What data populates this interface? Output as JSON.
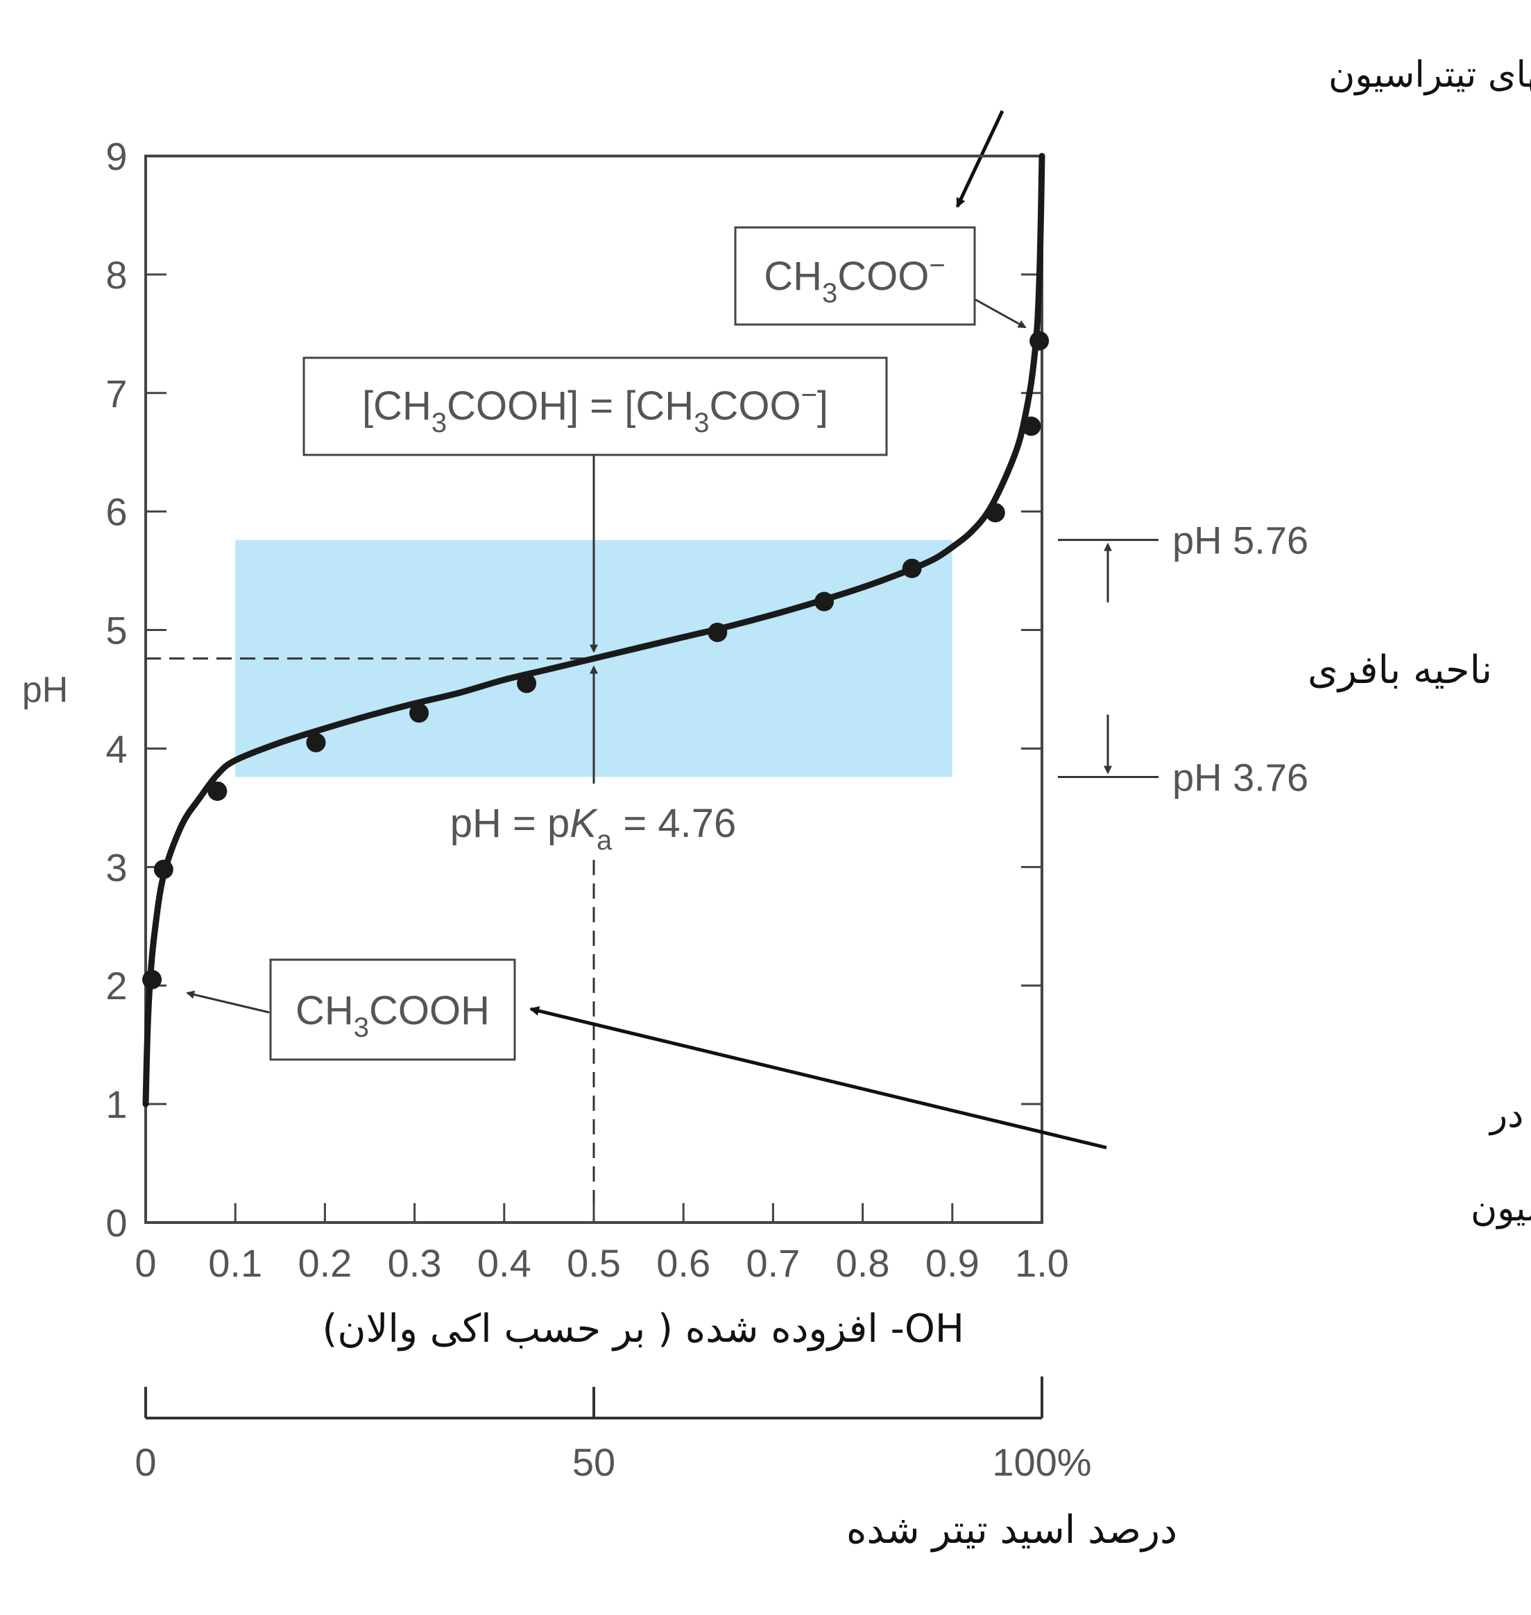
{
  "chart_data": {
    "type": "line",
    "ylabel": "pH",
    "xlabel": "OH- افزوده شده ( بر حسب اکی والان)",
    "xlim": [
      0,
      1.0
    ],
    "ylim": [
      0,
      9
    ],
    "grid": false,
    "x_ticks": [
      "0",
      "0.1",
      "0.2",
      "0.3",
      "0.4",
      "0.5",
      "0.6",
      "0.7",
      "0.8",
      "0.9",
      "1.0"
    ],
    "y_ticks": [
      "0",
      "1",
      "2",
      "3",
      "4",
      "5",
      "6",
      "7",
      "8",
      "9"
    ],
    "series": [
      {
        "x": [
          0.0,
          0.002,
          0.005,
          0.01,
          0.02,
          0.04,
          0.06,
          0.08,
          0.1,
          0.15,
          0.2,
          0.25,
          0.3,
          0.35,
          0.4,
          0.45,
          0.5,
          0.55,
          0.6,
          0.65,
          0.7,
          0.75,
          0.8,
          0.85,
          0.88,
          0.9,
          0.92,
          0.94,
          0.96,
          0.975,
          0.985,
          0.99,
          0.995,
          0.998,
          1.0
        ],
        "y": [
          1.0,
          1.6,
          2.05,
          2.45,
          2.93,
          3.35,
          3.58,
          3.78,
          3.9,
          4.05,
          4.17,
          4.28,
          4.38,
          4.47,
          4.58,
          4.67,
          4.76,
          4.85,
          4.94,
          5.03,
          5.13,
          5.24,
          5.36,
          5.5,
          5.6,
          5.7,
          5.82,
          6.0,
          6.3,
          6.6,
          6.95,
          7.2,
          7.6,
          8.2,
          9.0
        ]
      }
    ],
    "markers": {
      "x": [
        0.007,
        0.02,
        0.08,
        0.19,
        0.305,
        0.425,
        0.638,
        0.757,
        0.855,
        0.948,
        0.988,
        0.997
      ],
      "y": [
        2.05,
        2.98,
        3.64,
        4.05,
        4.3,
        4.55,
        4.98,
        5.24,
        5.52,
        5.99,
        6.72,
        7.44
      ]
    },
    "buffer_region": {
      "x": [
        0.1,
        0.9
      ],
      "y": [
        3.76,
        5.76
      ]
    },
    "pka_line": {
      "x": 0.5,
      "y": 4.76
    }
  },
  "labels": {
    "top_note": "شکل غالب اسید در انتهای تیتراسیون",
    "ch3coo_box": "CH3COO−",
    "equal_box": "[CH3COOH] = [CH3COO−]",
    "pka_label": "pH = pKa = 4.76",
    "ph_upper": "pH 5.76",
    "ph_lower": "pH 3.76",
    "buffer_label": "ناحیه بافری",
    "ch3cooh_box": "CH3COOH",
    "bottom_note_line1": "شکل غالب اسید در",
    "bottom_note_line2": "ابتدای تیتراسیون"
  },
  "percent_axis": {
    "ticks": [
      "0",
      "50",
      "100%"
    ],
    "label": "درصد اسید تیتر شده"
  },
  "colors": {
    "curve": "#1a1a1a",
    "buffer_fill": "#bde6f8",
    "axis": "#444444",
    "tick_text": "#555555",
    "box_text": "#555555"
  }
}
